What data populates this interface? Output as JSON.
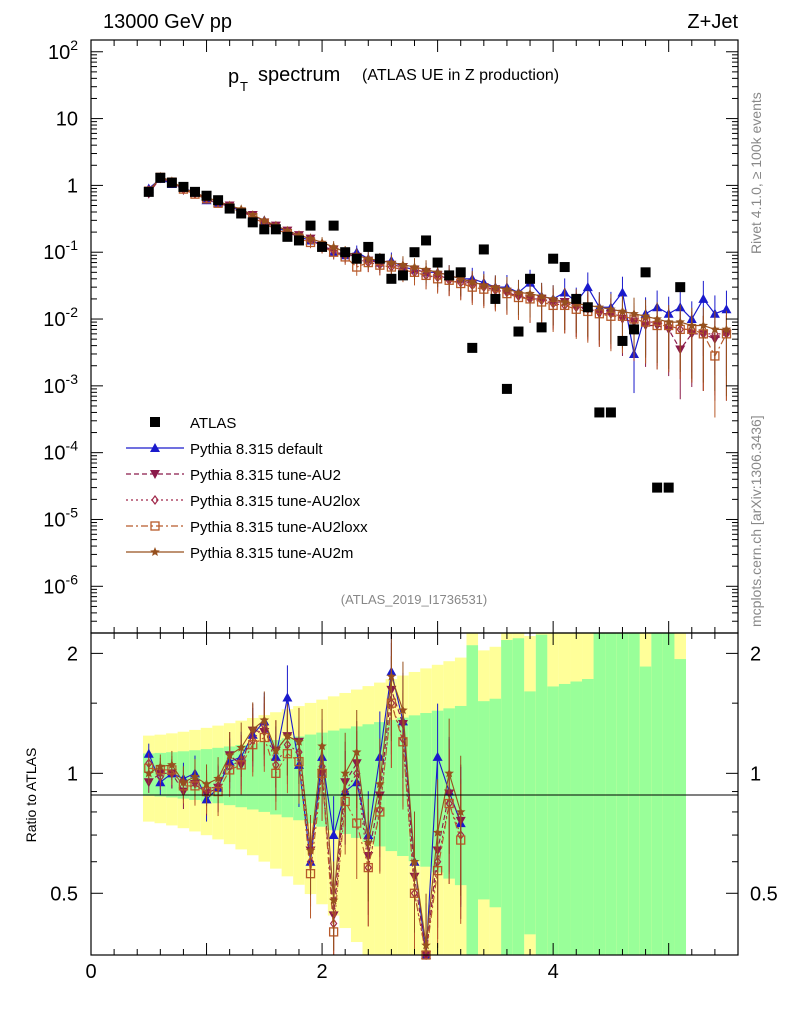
{
  "header": {
    "left": "13000 GeV pp",
    "right": "Z+Jet"
  },
  "plot_title": {
    "main": "p",
    "sub": "T",
    "word": "spectrum",
    "paren": "(ATLAS UE in Z production)"
  },
  "side_labels": {
    "rivet": "Rivet 4.1.0, ≥ 100k events",
    "mcplots": "mcplots.cern.ch [arXiv:1306.3436]"
  },
  "analysis_id": "(ATLAS_2019_I1736531)",
  "colors": {
    "atlas": "#000000",
    "default": "#1a1acc",
    "au2": "#8b1a4a",
    "au2lox": "#a0284a",
    "au2loxx": "#b85a2a",
    "au2m": "#96501e",
    "band_green": "#99ff99",
    "band_yellow": "#ffff99"
  },
  "chart_data": [
    {
      "type": "scatter",
      "title": "pT spectrum (ATLAS UE in Z production)",
      "xlabel": "",
      "ylabel": "",
      "yscale": "log",
      "xlim": [
        0,
        5.6
      ],
      "ylim": [
        2e-07,
        150
      ],
      "y_tick_labels": [
        "10^2",
        "10",
        "1",
        "10^-1",
        "10^-2",
        "10^-3",
        "10^-4",
        "10^-5",
        "10^-6"
      ],
      "x": [
        0.5,
        0.6,
        0.7,
        0.8,
        0.9,
        1.0,
        1.1,
        1.2,
        1.3,
        1.4,
        1.5,
        1.6,
        1.7,
        1.8,
        1.9,
        2.0,
        2.1,
        2.2,
        2.3,
        2.4,
        2.5,
        2.6,
        2.7,
        2.8,
        2.9,
        3.0,
        3.1,
        3.2,
        3.3,
        3.4,
        3.5,
        3.6,
        3.7,
        3.8,
        3.9,
        4.0,
        4.1,
        4.2,
        4.3,
        4.4,
        4.5,
        4.6,
        4.7,
        4.8,
        4.9,
        5.0,
        5.1,
        5.2,
        5.3,
        5.4,
        5.5
      ],
      "legend": [
        "ATLAS",
        "Pythia 8.315 default",
        "Pythia 8.315 tune-AU2",
        "Pythia 8.315 tune-AU2lox",
        "Pythia 8.315 tune-AU2loxx",
        "Pythia 8.315 tune-AU2m"
      ],
      "series": [
        {
          "name": "ATLAS",
          "marker": "square",
          "values": [
            0.8,
            1.3,
            1.1,
            0.95,
            0.8,
            0.7,
            0.6,
            0.45,
            0.38,
            0.28,
            0.22,
            0.22,
            0.17,
            0.15,
            0.25,
            0.12,
            0.25,
            0.1,
            0.08,
            0.12,
            0.08,
            0.04,
            0.045,
            0.1,
            0.15,
            0.07,
            0.045,
            0.05,
            0.0037,
            0.11,
            0.02,
            0.0009,
            0.0065,
            0.04,
            0.0075,
            0.08,
            0.06,
            0.02,
            0.015,
            0.0004,
            0.0004,
            0.0047,
            0.007,
            0.05,
            3e-05,
            3e-05,
            0.03,
            null,
            null,
            null,
            null
          ]
        },
        {
          "name": "Pythia 8.315 default",
          "marker": "triangle-up",
          "values": [
            0.9,
            1.25,
            1.05,
            0.92,
            0.78,
            0.6,
            0.55,
            0.48,
            0.42,
            0.35,
            0.3,
            0.24,
            0.2,
            0.17,
            0.15,
            0.13,
            0.1,
            0.09,
            0.1,
            0.08,
            0.07,
            0.075,
            0.06,
            0.055,
            0.05,
            0.05,
            0.045,
            0.04,
            0.04,
            0.035,
            0.03,
            0.03,
            0.025,
            0.035,
            0.022,
            0.02,
            0.025,
            0.018,
            0.03,
            0.015,
            0.015,
            0.025,
            0.003,
            0.012,
            0.015,
            0.012,
            0.015,
            0.01,
            0.02,
            0.012,
            0.014
          ]
        },
        {
          "name": "Pythia 8.315 tune-AU2",
          "marker": "triangle-down",
          "values": [
            0.75,
            1.3,
            1.1,
            0.85,
            0.75,
            0.62,
            0.55,
            0.5,
            0.4,
            0.36,
            0.28,
            0.25,
            0.21,
            0.18,
            0.16,
            0.12,
            0.11,
            0.095,
            0.085,
            0.075,
            0.07,
            0.065,
            0.06,
            0.055,
            0.05,
            0.045,
            0.04,
            0.038,
            0.034,
            0.03,
            0.028,
            0.025,
            0.022,
            0.02,
            0.02,
            0.018,
            0.018,
            0.015,
            0.015,
            0.012,
            0.012,
            0.01,
            0.009,
            0.008,
            0.008,
            0.007,
            0.0035,
            0.006,
            0.006,
            0.005,
            0.006
          ]
        },
        {
          "name": "Pythia 8.315 tune-AU2lox",
          "marker": "diamond",
          "values": [
            0.85,
            1.28,
            1.08,
            0.9,
            0.76,
            0.64,
            0.56,
            0.47,
            0.41,
            0.34,
            0.29,
            0.23,
            0.2,
            0.17,
            0.15,
            0.125,
            0.105,
            0.09,
            0.08,
            0.07,
            0.065,
            0.06,
            0.055,
            0.05,
            0.045,
            0.042,
            0.038,
            0.035,
            0.032,
            0.03,
            0.027,
            0.025,
            0.022,
            0.02,
            0.019,
            0.017,
            0.016,
            0.015,
            0.014,
            0.013,
            0.012,
            0.011,
            0.01,
            0.009,
            0.009,
            0.008,
            0.007,
            0.007,
            0.006,
            0.006,
            0.006
          ]
        },
        {
          "name": "Pythia 8.315 tune-AU2loxx",
          "marker": "square-open",
          "values": [
            0.82,
            1.32,
            1.12,
            0.88,
            0.74,
            0.63,
            0.54,
            0.46,
            0.4,
            0.33,
            0.27,
            0.22,
            0.19,
            0.16,
            0.14,
            0.12,
            0.1,
            0.085,
            0.06,
            0.07,
            0.064,
            0.06,
            0.054,
            0.05,
            0.045,
            0.04,
            0.038,
            0.034,
            0.03,
            0.028,
            0.026,
            0.024,
            0.021,
            0.02,
            0.018,
            0.016,
            0.016,
            0.014,
            0.013,
            0.012,
            0.011,
            0.011,
            0.01,
            0.009,
            0.008,
            0.008,
            0.007,
            0.007,
            0.006,
            0.0028,
            0.006
          ]
        },
        {
          "name": "Pythia 8.315 tune-AU2m",
          "marker": "star",
          "values": [
            0.8,
            1.35,
            1.15,
            0.9,
            0.78,
            0.66,
            0.58,
            0.5,
            0.44,
            0.36,
            0.3,
            0.25,
            0.21,
            0.18,
            0.16,
            0.14,
            0.12,
            0.1,
            0.09,
            0.08,
            0.075,
            0.07,
            0.065,
            0.06,
            0.055,
            0.05,
            0.045,
            0.04,
            0.036,
            0.032,
            0.03,
            0.028,
            0.025,
            0.024,
            0.022,
            0.02,
            0.018,
            0.017,
            0.016,
            0.015,
            0.014,
            0.013,
            0.012,
            0.011,
            0.01,
            0.009,
            0.009,
            0.008,
            0.008,
            0.007,
            0.007
          ]
        }
      ]
    },
    {
      "type": "scatter",
      "title": "",
      "xlabel": "",
      "ylabel": "Ratio to ATLAS",
      "xlim": [
        0,
        5.6
      ],
      "ylim": [
        0.35,
        2.25
      ],
      "x_tick_labels": [
        "0",
        "2",
        "4"
      ],
      "y_tick_labels": [
        "0.5",
        "1",
        "2"
      ],
      "x": [
        0.5,
        0.6,
        0.7,
        0.8,
        0.9,
        1.0,
        1.1,
        1.2,
        1.3,
        1.4,
        1.5,
        1.6,
        1.7,
        1.8,
        1.9,
        2.0,
        2.1,
        2.2,
        2.3,
        2.4,
        2.5,
        2.6,
        2.7,
        2.8,
        2.9,
        3.0,
        3.1,
        3.2
      ],
      "series": [
        {
          "name": "Pythia 8.315 default",
          "values": [
            1.12,
            0.95,
            1.0,
            0.97,
            1.0,
            0.86,
            0.92,
            1.07,
            1.1,
            1.25,
            1.35,
            1.1,
            1.55,
            1.05,
            0.6,
            1.1,
            0.7,
            0.9,
            0.95,
            0.7,
            1.1,
            1.8,
            1.35,
            0.6,
            0.35,
            1.1,
            0.9,
            0.75
          ]
        },
        {
          "name": "Pythia 8.315 tune-AU2",
          "values": [
            0.95,
            1.0,
            1.0,
            0.9,
            0.94,
            0.89,
            0.92,
            1.11,
            1.05,
            1.28,
            1.27,
            1.14,
            1.24,
            1.2,
            0.64,
            1.0,
            0.44,
            0.95,
            1.06,
            0.62,
            0.88,
            1.62,
            1.33,
            0.55,
            0.33,
            0.64,
            0.89,
            0.76
          ]
        },
        {
          "name": "Pythia 8.315 tune-AU2lox",
          "values": [
            1.06,
            0.98,
            1.0,
            0.95,
            0.95,
            0.91,
            0.93,
            1.04,
            1.08,
            1.21,
            1.32,
            1.05,
            1.18,
            1.13,
            0.6,
            1.04,
            0.42,
            0.9,
            1.0,
            0.58,
            0.81,
            1.5,
            1.22,
            0.5,
            0.3,
            0.6,
            0.84,
            0.7
          ]
        },
        {
          "name": "Pythia 8.315 tune-AU2loxx",
          "values": [
            1.03,
            1.02,
            1.02,
            0.93,
            0.93,
            0.9,
            0.9,
            1.02,
            1.05,
            1.18,
            1.23,
            1.0,
            1.12,
            1.07,
            0.56,
            1.0,
            0.4,
            0.85,
            0.75,
            0.58,
            0.8,
            1.5,
            1.2,
            0.5,
            0.3,
            0.57,
            0.84,
            0.68
          ]
        },
        {
          "name": "Pythia 8.315 tune-AU2m",
          "values": [
            1.0,
            1.04,
            1.05,
            0.95,
            0.98,
            0.94,
            0.97,
            1.11,
            1.16,
            1.29,
            1.36,
            1.14,
            1.24,
            1.2,
            0.64,
            1.17,
            0.48,
            1.0,
            1.13,
            0.67,
            0.94,
            1.75,
            1.44,
            0.6,
            0.37,
            0.71,
            1.0,
            0.8
          ]
        }
      ]
    }
  ]
}
